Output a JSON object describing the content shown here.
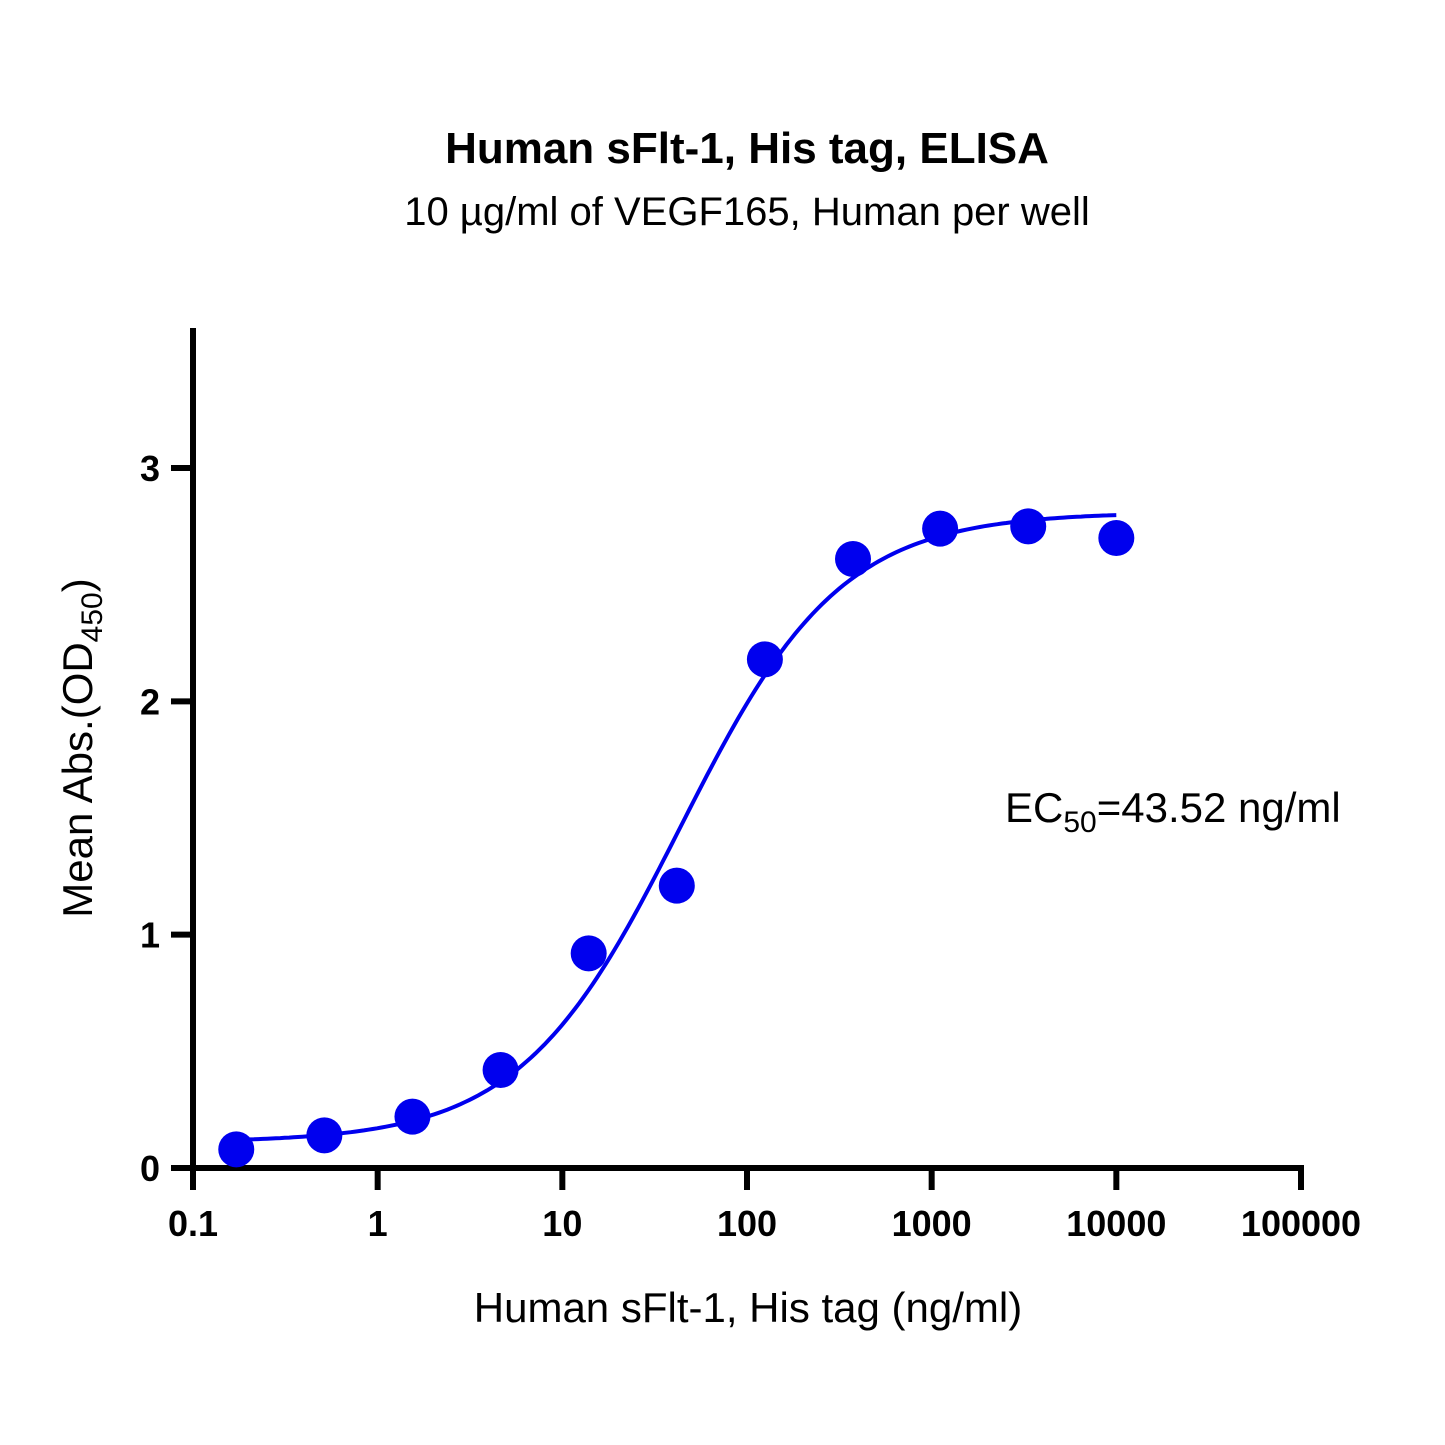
{
  "chart_data": {
    "type": "scatter",
    "title": "Human sFlt-1, His tag, ELISA",
    "subtitle": "10 µg/ml of VEGF165, Human per well",
    "xlabel": "Human sFlt-1, His tag (ng/ml)",
    "ylabel": {
      "main": "Mean Abs.(OD",
      "sub": "450",
      "end": ")"
    },
    "xscale": "log",
    "xlim": [
      0.1,
      100000
    ],
    "ylim": [
      0,
      3.6
    ],
    "xticks": [
      "0.1",
      "1",
      "10",
      "100",
      "1000",
      "10000",
      "100000"
    ],
    "xtick_values": [
      0.1,
      1,
      10,
      100,
      1000,
      10000,
      100000
    ],
    "yticks": [
      "0",
      "1",
      "2",
      "3"
    ],
    "ytick_values": [
      0,
      1,
      2,
      3
    ],
    "grid": false,
    "color": "#0000ee",
    "series": [
      {
        "name": "Human sFlt-1, His tag",
        "x": [
          0.1715,
          0.5144,
          1.543,
          4.63,
          13.89,
          41.67,
          125,
          375,
          1111,
          3333,
          10000
        ],
        "y": [
          0.08,
          0.14,
          0.22,
          0.42,
          0.92,
          1.21,
          2.18,
          2.61,
          2.74,
          2.75,
          2.7
        ]
      }
    ],
    "fit": {
      "model": "4PL",
      "bottom": 0.11,
      "top": 2.81,
      "ec50": 43.52,
      "hill": 1.0,
      "x_range": [
        0.1715,
        10000
      ]
    },
    "annotation": {
      "prefix": "EC",
      "sub": "50",
      "text": "=43.52 ng/ml"
    }
  }
}
